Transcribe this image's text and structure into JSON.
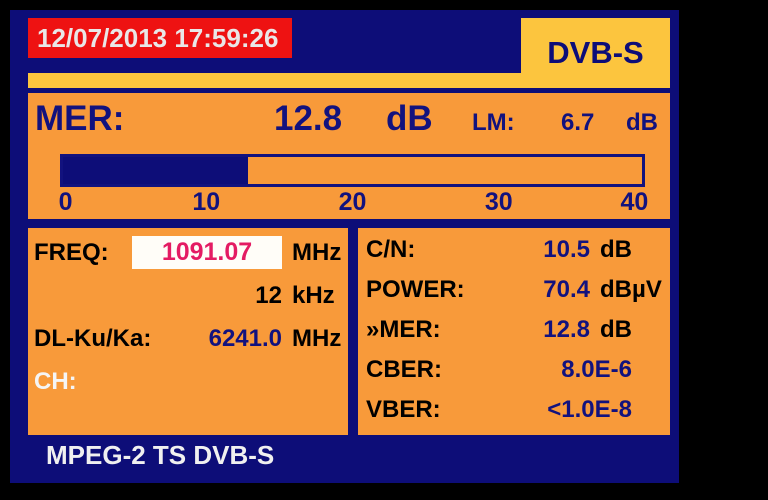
{
  "colors": {
    "background": "#000000",
    "panel_navy": "#0d0d78",
    "section_orange": "#f89a3a",
    "tab_yellow": "#fcc53e",
    "datetime_red": "#ee1212",
    "value_navy": "#12127e",
    "freq_pink": "#e41b63",
    "freq_box_white": "#fffdf8",
    "text_black": "#000000",
    "text_white": "#f0f0f0"
  },
  "header": {
    "datetime": "12/07/2013 17:59:26",
    "mode": "DVB-S"
  },
  "mer": {
    "label": "MER:",
    "value": "12.8",
    "unit": "dB",
    "lm_label": "LM:",
    "lm_value": "6.7",
    "lm_unit": "dB",
    "bar": {
      "min": 0,
      "max": 40,
      "value": 12.8,
      "fill_percent": 32
    },
    "scale_ticks": [
      "0",
      "10",
      "20",
      "30",
      "40"
    ]
  },
  "tuning": {
    "freq_label": "FREQ:",
    "freq_value": "1091.07",
    "freq_unit": "MHz",
    "step_value": "12",
    "step_unit": "kHz",
    "downlink_label": "DL-Ku/Ka:",
    "downlink_value": "6241.0",
    "downlink_unit": "MHz",
    "channel_label": "CH:",
    "channel_value": ""
  },
  "measurements": {
    "rows": [
      {
        "label": "C/N:",
        "value": "10.5",
        "unit": "dB"
      },
      {
        "label": "POWER:",
        "value": "70.4",
        "unit": "dBµV"
      },
      {
        "label": "»MER:",
        "value": "12.8",
        "unit": "dB"
      },
      {
        "label": "CBER:",
        "value": "8.0E-6",
        "unit": ""
      },
      {
        "label": "VBER:",
        "value": "<1.0E-8",
        "unit": ""
      }
    ]
  },
  "footer": {
    "text": "MPEG-2 TS DVB-S"
  }
}
